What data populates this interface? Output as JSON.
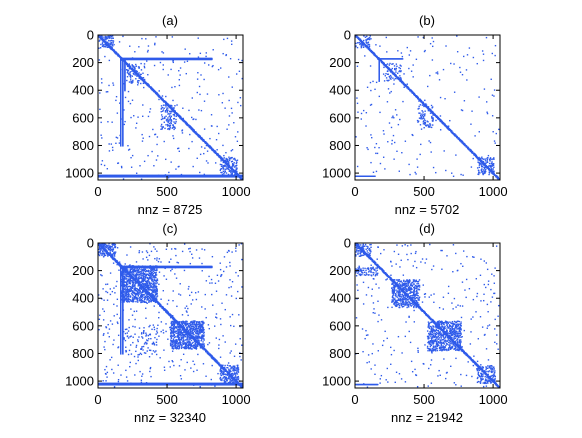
{
  "figure": {
    "panels": [
      {
        "title": "(a)",
        "nnz_label": "nnz = 8725"
      },
      {
        "title": "(b)",
        "nnz_label": "nnz = 5702"
      },
      {
        "title": "(c)",
        "nnz_label": "nnz = 32340"
      },
      {
        "title": "(d)",
        "nnz_label": "nnz = 21942"
      }
    ],
    "marker_color": "#2F5BEA",
    "axis_color": "#000000"
  },
  "chart_data": [
    {
      "type": "scatter",
      "subtype": "sparsity-pattern",
      "title": "(a)",
      "xlabel": "nnz = 8725",
      "ylabel": "",
      "xlim": [
        0,
        1050
      ],
      "ylim": [
        1050,
        0
      ],
      "xticks": [
        0,
        500,
        1000
      ],
      "yticks": [
        0,
        200,
        400,
        600,
        800,
        1000
      ],
      "nnz": 8725,
      "features": [
        {
          "kind": "diagonal",
          "from": 0,
          "to": 1040,
          "width": 14
        },
        {
          "kind": "block",
          "rows": [
            0,
            90
          ],
          "cols": [
            0,
            110
          ],
          "density": 0.35
        },
        {
          "kind": "hline",
          "row": 165,
          "cols": [
            160,
            820
          ]
        },
        {
          "kind": "hline",
          "row": 172,
          "cols": [
            160,
            820
          ]
        },
        {
          "kind": "vline",
          "col": 160,
          "rows": [
            170,
            800
          ]
        },
        {
          "kind": "vline",
          "col": 175,
          "rows": [
            170,
            800
          ]
        },
        {
          "kind": "vline",
          "col": 190,
          "rows": [
            170,
            400
          ]
        },
        {
          "kind": "hline",
          "row": 1012,
          "cols": [
            0,
            1040
          ]
        },
        {
          "kind": "hline",
          "row": 1022,
          "cols": [
            0,
            1040
          ]
        },
        {
          "kind": "block",
          "rows": [
            200,
            340
          ],
          "cols": [
            200,
            330
          ],
          "density": 0.2
        },
        {
          "kind": "block",
          "rows": [
            500,
            680
          ],
          "cols": [
            450,
            560
          ],
          "density": 0.22
        },
        {
          "kind": "block",
          "rows": [
            880,
            1000
          ],
          "cols": [
            880,
            1000
          ],
          "density": 0.35
        },
        {
          "kind": "scatter",
          "rows": [
            0,
            1040
          ],
          "cols": [
            0,
            1040
          ],
          "count": 180
        }
      ]
    },
    {
      "type": "scatter",
      "subtype": "sparsity-pattern",
      "title": "(b)",
      "xlabel": "nnz = 5702",
      "ylabel": "",
      "xlim": [
        0,
        1050
      ],
      "ylim": [
        1050,
        0
      ],
      "xticks": [
        0,
        500,
        1000
      ],
      "yticks": [
        0,
        200,
        400,
        600,
        800,
        1000
      ],
      "nnz": 5702,
      "features": [
        {
          "kind": "diagonal",
          "from": 0,
          "to": 1040,
          "width": 12
        },
        {
          "kind": "block",
          "rows": [
            0,
            90
          ],
          "cols": [
            0,
            110
          ],
          "density": 0.3
        },
        {
          "kind": "hline",
          "row": 168,
          "cols": [
            160,
            340
          ]
        },
        {
          "kind": "vline",
          "col": 170,
          "rows": [
            170,
            330
          ]
        },
        {
          "kind": "block",
          "rows": [
            200,
            330
          ],
          "cols": [
            200,
            330
          ],
          "density": 0.18
        },
        {
          "kind": "block",
          "rows": [
            500,
            680
          ],
          "cols": [
            450,
            560
          ],
          "density": 0.2
        },
        {
          "kind": "block",
          "rows": [
            880,
            1000
          ],
          "cols": [
            880,
            1000
          ],
          "density": 0.3
        },
        {
          "kind": "hline",
          "row": 1018,
          "cols": [
            0,
            140
          ]
        },
        {
          "kind": "scatter",
          "rows": [
            0,
            1040
          ],
          "cols": [
            0,
            1040
          ],
          "count": 120
        }
      ]
    },
    {
      "type": "scatter",
      "subtype": "sparsity-pattern",
      "title": "(c)",
      "xlabel": "nnz = 32340",
      "ylabel": "",
      "xlim": [
        0,
        1050
      ],
      "ylim": [
        1050,
        0
      ],
      "xticks": [
        0,
        500,
        1000
      ],
      "yticks": [
        0,
        200,
        400,
        600,
        800,
        1000
      ],
      "nnz": 32340,
      "features": [
        {
          "kind": "diagonal",
          "from": 0,
          "to": 1040,
          "width": 16
        },
        {
          "kind": "block",
          "rows": [
            0,
            90
          ],
          "cols": [
            0,
            120
          ],
          "density": 0.45
        },
        {
          "kind": "block",
          "rows": [
            160,
            420
          ],
          "cols": [
            160,
            420
          ],
          "density": 0.55
        },
        {
          "kind": "block",
          "rows": [
            560,
            760
          ],
          "cols": [
            520,
            760
          ],
          "density": 0.6
        },
        {
          "kind": "hline",
          "row": 165,
          "cols": [
            160,
            820
          ]
        },
        {
          "kind": "hline",
          "row": 172,
          "cols": [
            160,
            820
          ]
        },
        {
          "kind": "vline",
          "col": 160,
          "rows": [
            170,
            800
          ]
        },
        {
          "kind": "vline",
          "col": 175,
          "rows": [
            170,
            800
          ]
        },
        {
          "kind": "hline",
          "row": 1012,
          "cols": [
            0,
            1040
          ]
        },
        {
          "kind": "hline",
          "row": 1022,
          "cols": [
            0,
            1040
          ]
        },
        {
          "kind": "block",
          "rows": [
            880,
            1010
          ],
          "cols": [
            880,
            1010
          ],
          "density": 0.4
        },
        {
          "kind": "block",
          "rows": [
            600,
            800
          ],
          "cols": [
            180,
            420
          ],
          "density": 0.08
        },
        {
          "kind": "scatter",
          "rows": [
            0,
            1040
          ],
          "cols": [
            0,
            1040
          ],
          "count": 260
        }
      ]
    },
    {
      "type": "scatter",
      "subtype": "sparsity-pattern",
      "title": "(d)",
      "xlabel": "nnz = 21942",
      "ylabel": "",
      "xlim": [
        0,
        1050
      ],
      "ylim": [
        1050,
        0
      ],
      "xticks": [
        0,
        500,
        1000
      ],
      "yticks": [
        0,
        200,
        400,
        600,
        800,
        1000
      ],
      "nnz": 21942,
      "features": [
        {
          "kind": "diagonal",
          "from": 0,
          "to": 1040,
          "width": 14
        },
        {
          "kind": "block",
          "rows": [
            0,
            90
          ],
          "cols": [
            0,
            110
          ],
          "density": 0.4
        },
        {
          "kind": "block",
          "rows": [
            170,
            230
          ],
          "cols": [
            0,
            160
          ],
          "density": 0.3
        },
        {
          "kind": "block",
          "rows": [
            260,
            460
          ],
          "cols": [
            260,
            460
          ],
          "density": 0.45
        },
        {
          "kind": "block",
          "rows": [
            560,
            770
          ],
          "cols": [
            520,
            760
          ],
          "density": 0.5
        },
        {
          "kind": "block",
          "rows": [
            880,
            1010
          ],
          "cols": [
            880,
            1010
          ],
          "density": 0.35
        },
        {
          "kind": "hline",
          "row": 1020,
          "cols": [
            0,
            160
          ]
        },
        {
          "kind": "scatter",
          "rows": [
            0,
            1040
          ],
          "cols": [
            0,
            1040
          ],
          "count": 200
        }
      ]
    }
  ]
}
